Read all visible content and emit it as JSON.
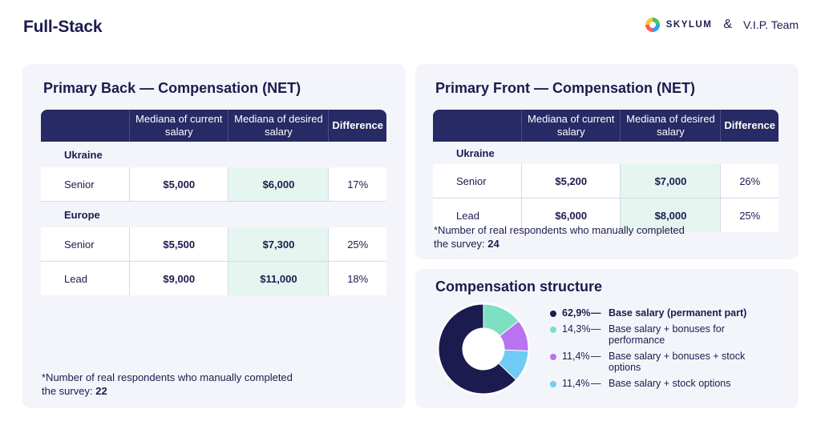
{
  "page": {
    "title": "Full-Stack",
    "brand_left": "SKYLUM",
    "brand_amp": "&",
    "brand_right": "V.I.P. Team"
  },
  "back": {
    "title": "Primary Back — Compensation (NET)",
    "headers": [
      "",
      "Mediana of current salary",
      "Mediana of desired salary",
      "Difference"
    ],
    "groups": [
      {
        "name": "Ukraine",
        "rows": [
          {
            "label": "Senior",
            "current": "$5,000",
            "desired": "$6,000",
            "difference": "17%"
          }
        ]
      },
      {
        "name": "Europe",
        "rows": [
          {
            "label": "Senior",
            "current": "$5,500",
            "desired": "$7,300",
            "difference": "25%"
          },
          {
            "label": "Lead",
            "current": "$9,000",
            "desired": "$11,000",
            "difference": "18%"
          }
        ]
      }
    ],
    "footnote": "*Number of real respondents who manually completed the survey:",
    "respondents": "22"
  },
  "front": {
    "title": "Primary Front — Compensation (NET)",
    "headers": [
      "",
      "Mediana of current salary",
      "Mediana of desired salary",
      "Difference"
    ],
    "groups": [
      {
        "name": "Ukraine",
        "rows": [
          {
            "label": "Senior",
            "current": "$5,200",
            "desired": "$7,000",
            "difference": "26%"
          },
          {
            "label": "Lead",
            "current": "$6,000",
            "desired": "$8,000",
            "difference": "25%"
          }
        ]
      }
    ],
    "footnote": "*Number of real respondents who manually completed the survey:",
    "respondents": "24"
  },
  "structure": {
    "title": "Compensation structure",
    "chart_data": {
      "type": "pie",
      "slices": [
        {
          "label": "Base salary (permanent part)",
          "pct_text": "62,9%",
          "value": 62.9,
          "color": "#1c1b4f"
        },
        {
          "label": "Base salary + bonuses for performance",
          "pct_text": "14,3%",
          "value": 14.3,
          "color": "#7ee0c3"
        },
        {
          "label": "Base salary + bonuses + stock options",
          "pct_text": "11,4%",
          "value": 11.4,
          "color": "#b973f0"
        },
        {
          "label": "Base salary + stock options",
          "pct_text": "11,4%",
          "value": 11.4,
          "color": "#6fcbf5"
        }
      ]
    }
  },
  "colors": {
    "navy": "#1c1b4f",
    "header": "#272a64",
    "desired_bg": "#e4f6ef",
    "card_bg": "#f4f5fa"
  }
}
